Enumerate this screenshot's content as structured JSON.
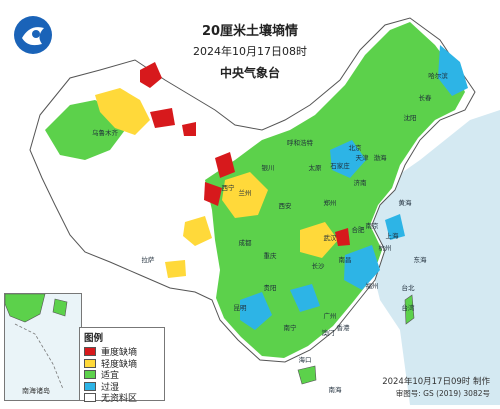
{
  "title": "20厘米土壤墒情",
  "datetime": "2024年10月17日08时",
  "agency": "中央气象台",
  "legend": {
    "title": "图例",
    "items": [
      {
        "label": "重度缺墒",
        "color": "#d7191c"
      },
      {
        "label": "轻度缺墒",
        "color": "#ffd93a"
      },
      {
        "label": "适宜",
        "color": "#5cd14b"
      },
      {
        "label": "过湿",
        "color": "#2db4e6"
      },
      {
        "label": "无资料区",
        "color": "#ffffff"
      }
    ]
  },
  "colors": {
    "ocean": "#d4e9f2",
    "border": "#555555",
    "land_none": "#ffffff"
  },
  "footer": {
    "made": "2024年10月17日09时 制作",
    "review": "审图号: GS (2019) 3082号"
  },
  "inset_label": "南海诸岛",
  "place_labels": [
    "北京",
    "天津",
    "上海",
    "武汉",
    "长沙",
    "广州",
    "香港",
    "澳门",
    "福州",
    "台北",
    "南京",
    "杭州",
    "合肥",
    "南昌",
    "郑州",
    "济南",
    "石家庄",
    "太原",
    "西安",
    "兰州",
    "西宁",
    "银川",
    "呼和浩特",
    "沈阳",
    "长春",
    "哈尔滨",
    "成都",
    "重庆",
    "贵阳",
    "昆明",
    "南宁",
    "海口",
    "拉萨",
    "乌鲁木齐",
    "东海",
    "南海",
    "黄海",
    "渤海",
    "台湾"
  ]
}
